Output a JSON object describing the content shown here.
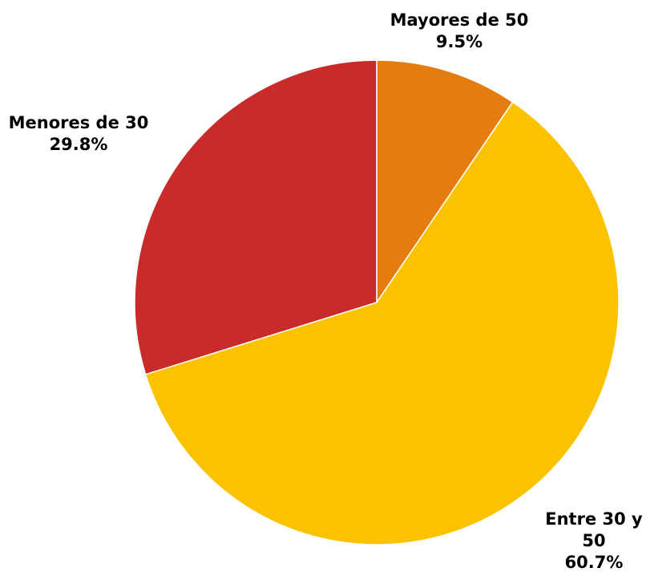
{
  "chart_data": {
    "type": "pie",
    "title": "",
    "start_angle_deg": 0,
    "direction": "clockwise",
    "legend": "none",
    "slices": [
      {
        "label_lines": [
          "Mayores de 50"
        ],
        "value": 9.5,
        "value_label": "9.5%",
        "color": "#E57C10"
      },
      {
        "label_lines": [
          "Entre 30 y",
          "50"
        ],
        "value": 60.7,
        "value_label": "60.7%",
        "color": "#FBC200"
      },
      {
        "label_lines": [
          "Menores de 30"
        ],
        "value": 29.8,
        "value_label": "29.8%",
        "color": "#C92A2A"
      }
    ]
  }
}
